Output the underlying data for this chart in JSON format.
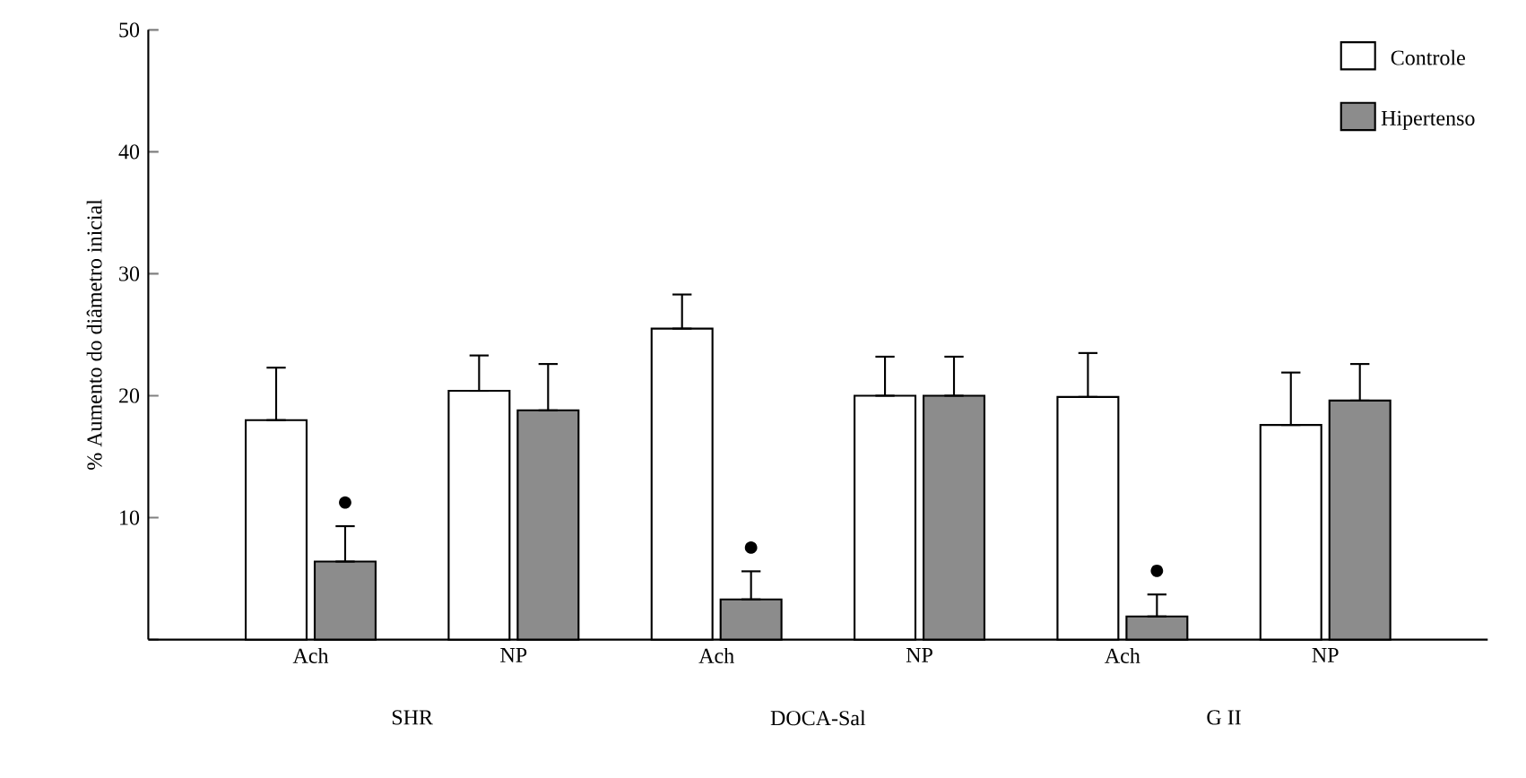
{
  "chart_data": {
    "type": "bar",
    "ylabel": "% Aumento do diâmetro inicial",
    "categories": [
      "Ach",
      "NP",
      "Ach",
      "NP",
      "Ach",
      "NP"
    ],
    "ylim": [
      0,
      50
    ],
    "yticks": [
      {
        "value": 0,
        "label": null
      },
      10,
      20,
      30,
      40,
      50
    ],
    "grid": false,
    "legend": "top right",
    "series": [
      {
        "name": "Controle",
        "color": "#ffffff",
        "values": [
          18,
          20.4,
          25.5,
          20,
          19.9,
          17.6
        ],
        "errors": [
          [
            18,
            22.3
          ],
          [
            20.4,
            23.3
          ],
          [
            25.5,
            28.3
          ],
          [
            20,
            23.2
          ],
          [
            19.9,
            23.5
          ],
          [
            17.6,
            21.9
          ]
        ]
      },
      {
        "name": "Hipertenso",
        "color": "#8c8c8c",
        "values": [
          6.4,
          18.8,
          3.3,
          20,
          1.9,
          19.6
        ],
        "errors": [
          [
            6.4,
            9.3
          ],
          [
            18.8,
            22.6
          ],
          [
            3.3,
            5.6
          ],
          [
            20,
            23.2
          ],
          [
            1.9,
            3.7
          ],
          [
            19.6,
            22.6
          ]
        ]
      }
    ],
    "annotations": [
      "SHR",
      "DOCA-Sal",
      "G II",
      "●",
      "●",
      "●"
    ]
  }
}
